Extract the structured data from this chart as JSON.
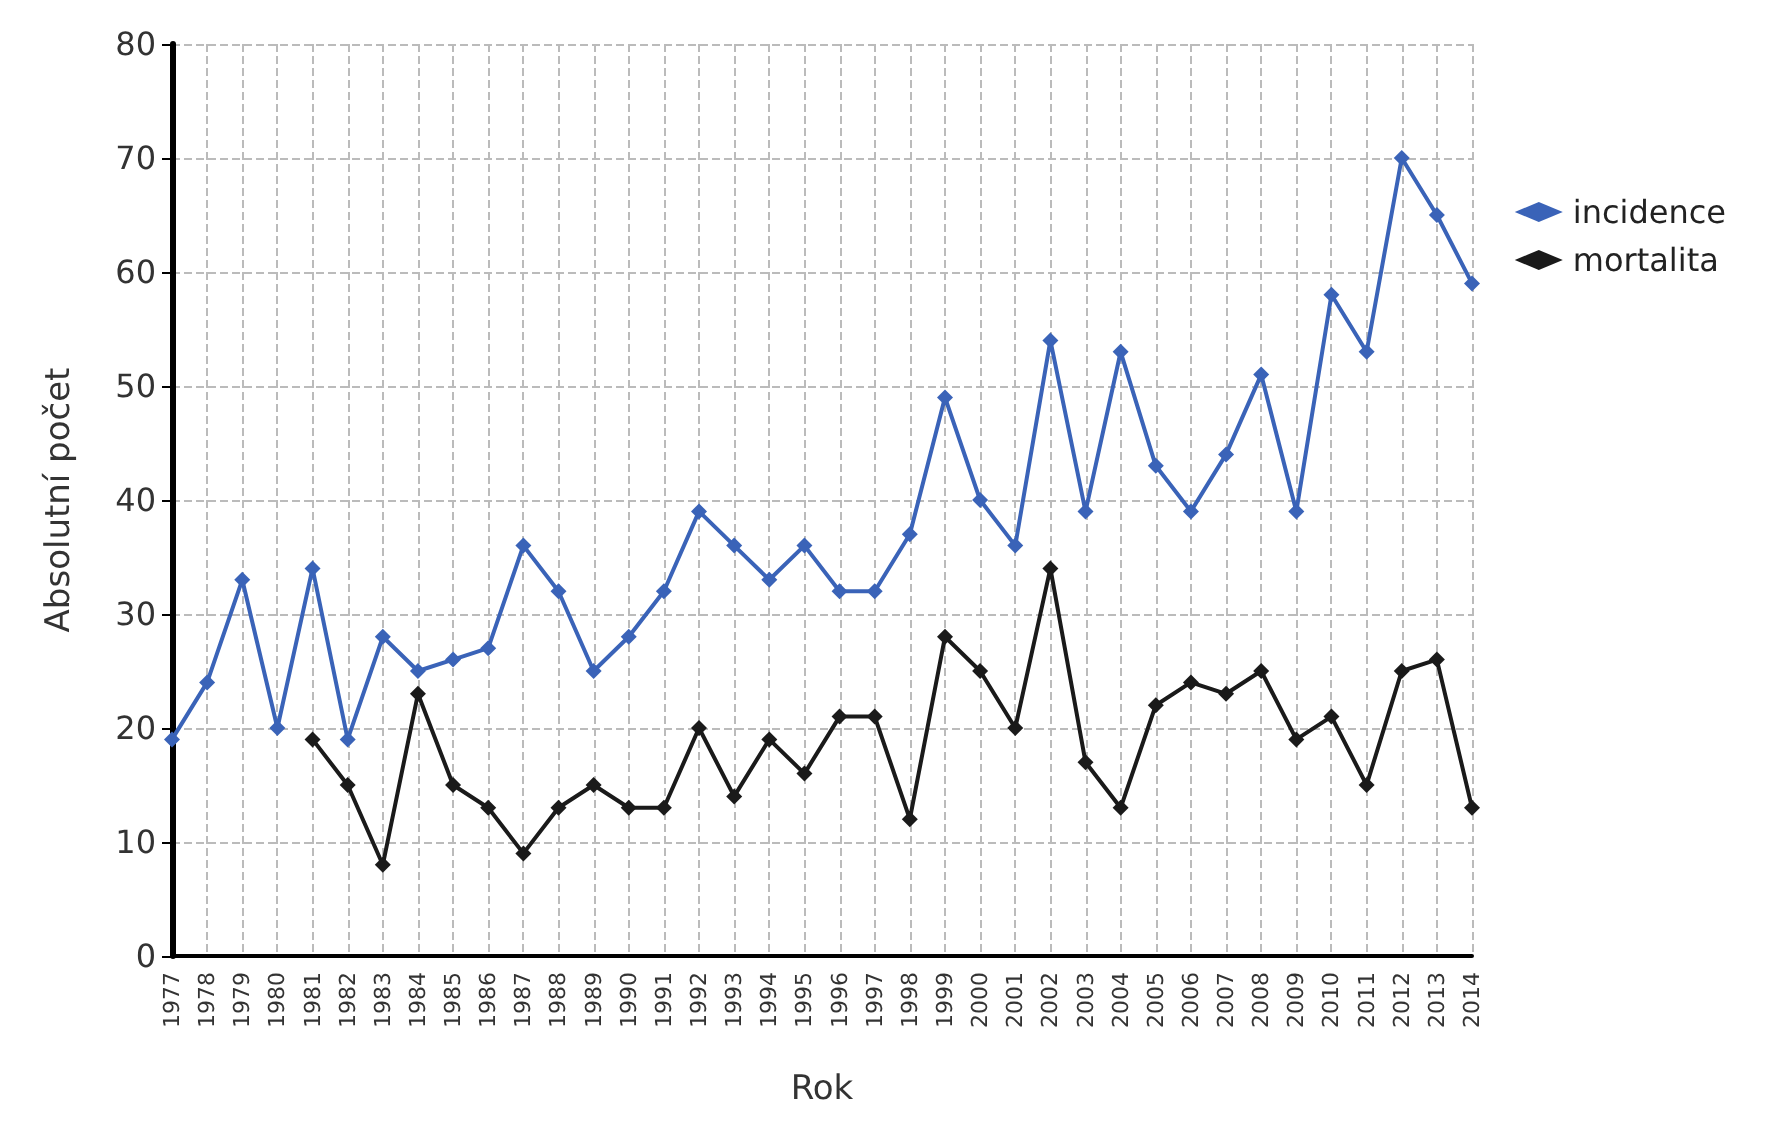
{
  "chart_data": {
    "type": "line",
    "xlabel": "Rok",
    "ylabel": "Absolutní počet",
    "categories": [
      "1977",
      "1978",
      "1979",
      "1980",
      "1981",
      "1982",
      "1983",
      "1984",
      "1985",
      "1986",
      "1987",
      "1988",
      "1989",
      "1990",
      "1991",
      "1992",
      "1993",
      "1994",
      "1995",
      "1996",
      "1997",
      "1998",
      "1999",
      "2000",
      "2001",
      "2002",
      "2003",
      "2004",
      "2005",
      "2006",
      "2007",
      "2008",
      "2009",
      "2010",
      "2011",
      "2012",
      "2013",
      "2014"
    ],
    "series": [
      {
        "name": "incidence",
        "color": "#3a63b8",
        "values": [
          19,
          24,
          33,
          20,
          34,
          19,
          28,
          25,
          26,
          27,
          36,
          32,
          25,
          28,
          32,
          39,
          36,
          33,
          36,
          32,
          32,
          37,
          49,
          40,
          36,
          54,
          39,
          53,
          43,
          39,
          44,
          51,
          39,
          58,
          53,
          70,
          65,
          59
        ]
      },
      {
        "name": "mortalita",
        "color": "#1a1a1a",
        "values": [
          null,
          null,
          null,
          null,
          19,
          15,
          8,
          23,
          15,
          13,
          9,
          13,
          15,
          13,
          13,
          20,
          14,
          19,
          16,
          21,
          21,
          12,
          28,
          25,
          20,
          34,
          17,
          13,
          22,
          24,
          23,
          25,
          19,
          21,
          15,
          25,
          26,
          13
        ]
      }
    ],
    "ylim": [
      0,
      80
    ],
    "yticks": [
      0,
      10,
      20,
      30,
      40,
      50,
      60,
      70,
      80
    ],
    "grid": true,
    "legend": "right",
    "marker": "diamond",
    "line_style": "solid"
  }
}
